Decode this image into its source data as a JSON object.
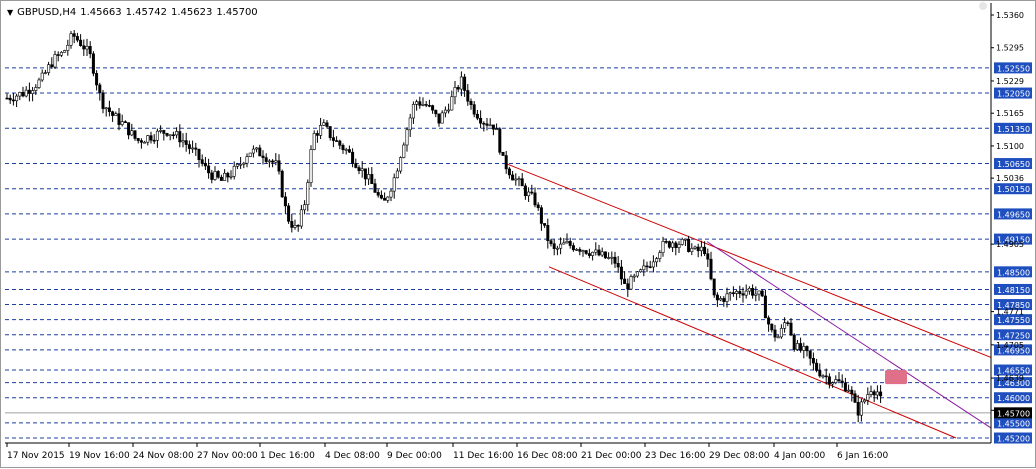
{
  "header": {
    "symbol": "GBPUSD,H4",
    "open": "1.45663",
    "high": "1.45742",
    "low": "1.45623",
    "close": "1.45700"
  },
  "price_axis": {
    "ticks": [
      "1.5360",
      "1.5295",
      "1.5229",
      "1.5165",
      "1.5100",
      "1.5036",
      "1.4905",
      "1.4771",
      "1.4705",
      "1.4639",
      "1.4575"
    ],
    "levels": [
      "1.52550",
      "1.52050",
      "1.51350",
      "1.50650",
      "1.50150",
      "1.49650",
      "1.49150",
      "1.48500",
      "1.48150",
      "1.47850",
      "1.47550",
      "1.47250",
      "1.46950",
      "1.46550",
      "1.46300",
      "1.46000",
      "1.45500",
      "1.45200"
    ],
    "current_price": "1.45700"
  },
  "time_axis": {
    "labels": [
      "17 Nov 2015",
      "19 Nov 16:00",
      "24 Nov 08:00",
      "27 Nov 00:00",
      "1 Dec 16:00",
      "4 Dec 08:00",
      "9 Dec 00:00",
      "11 Dec 16:00",
      "16 Dec 08:00",
      "21 Dec 00:00",
      "23 Dec 16:00",
      "29 Dec 08:00",
      "4 Jan 00:00",
      "6 Jan 16:00"
    ]
  },
  "colors": {
    "candle": "#000000",
    "level_line": "#1f3fa0",
    "level_label_bg": "#1f4fbf",
    "channel": "#cc0000",
    "trendline": "#8a1aa0",
    "zone": "#e0708a",
    "grid_current": "#a0a0a0"
  }
}
